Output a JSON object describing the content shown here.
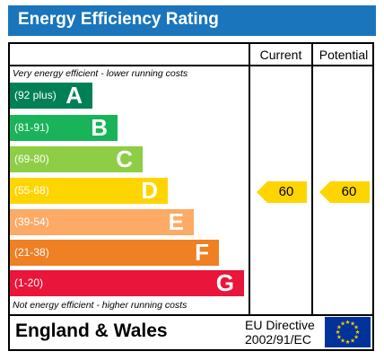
{
  "header": {
    "title": "Energy Efficiency Rating"
  },
  "columns": {
    "current": "Current",
    "potential": "Potential"
  },
  "notes": {
    "top": "Very energy efficient - lower running costs",
    "bottom": "Not energy efficient - higher running costs"
  },
  "bands": [
    {
      "range": "(92 plus)",
      "letter": "A",
      "color": "#008054"
    },
    {
      "range": "(81-91)",
      "letter": "B",
      "color": "#19b459"
    },
    {
      "range": "(69-80)",
      "letter": "C",
      "color": "#8dce46"
    },
    {
      "range": "(55-68)",
      "letter": "D",
      "color": "#ffd500"
    },
    {
      "range": "(39-54)",
      "letter": "E",
      "color": "#fcaa65"
    },
    {
      "range": "(21-38)",
      "letter": "F",
      "color": "#ef8023"
    },
    {
      "range": "(1-20)",
      "letter": "G",
      "color": "#e9153b"
    }
  ],
  "ratings": {
    "current": "60",
    "potential": "60",
    "color": "#ffd500"
  },
  "footer": {
    "region": "England & Wales",
    "directive_line1": "EU Directive",
    "directive_line2": "2002/91/EC",
    "flag_color": "#003399",
    "star_color": "#ffcc00"
  }
}
